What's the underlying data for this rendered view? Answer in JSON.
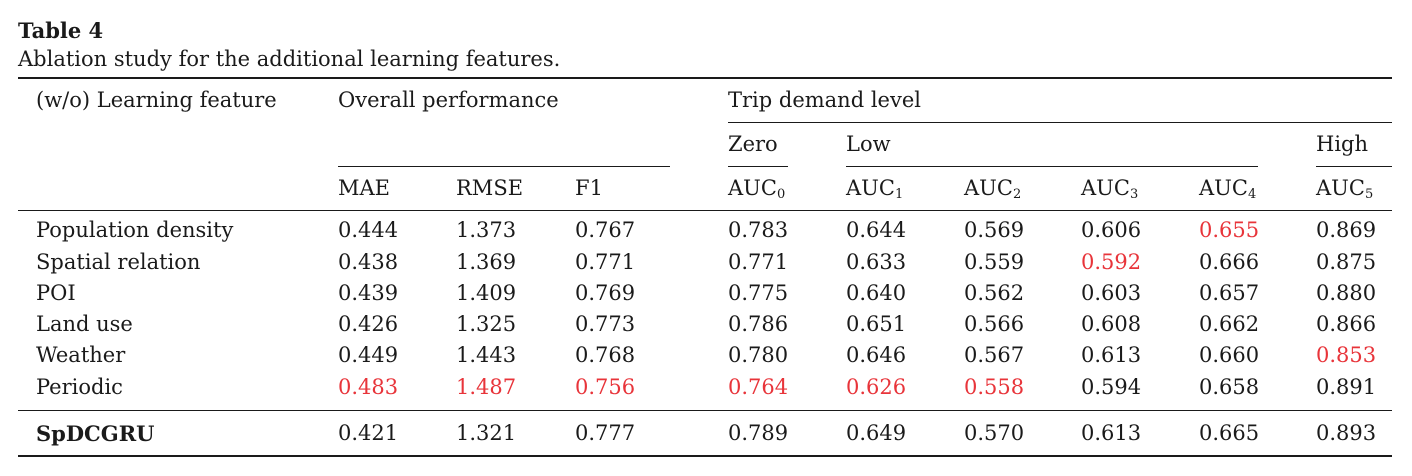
{
  "table": {
    "label": "Table 4",
    "caption": "Ablation study for the additional learning features.",
    "group_headers": {
      "feature": "(w/o) Learning feature",
      "overall": "Overall performance",
      "trip": "Trip demand level"
    },
    "level_headers": {
      "zero": "Zero",
      "low": "Low",
      "high": "High"
    },
    "columns": [
      {
        "base": "MAE",
        "sub": ""
      },
      {
        "base": "RMSE",
        "sub": ""
      },
      {
        "base": "F1",
        "sub": ""
      },
      {
        "base": "AUC",
        "sub": "0"
      },
      {
        "base": "AUC",
        "sub": "1"
      },
      {
        "base": "AUC",
        "sub": "2"
      },
      {
        "base": "AUC",
        "sub": "3"
      },
      {
        "base": "AUC",
        "sub": "4"
      },
      {
        "base": "AUC",
        "sub": "5"
      }
    ],
    "highlight_color": "#e8343a",
    "rows": [
      {
        "feature": "Population density",
        "values": [
          "0.444",
          "1.373",
          "0.767",
          "0.783",
          "0.644",
          "0.569",
          "0.606",
          "0.655",
          "0.869"
        ],
        "highlight": [
          false,
          false,
          false,
          false,
          false,
          false,
          false,
          true,
          false
        ],
        "bold": false
      },
      {
        "feature": "Spatial relation",
        "values": [
          "0.438",
          "1.369",
          "0.771",
          "0.771",
          "0.633",
          "0.559",
          "0.592",
          "0.666",
          "0.875"
        ],
        "highlight": [
          false,
          false,
          false,
          false,
          false,
          false,
          true,
          false,
          false
        ],
        "bold": false
      },
      {
        "feature": "POI",
        "values": [
          "0.439",
          "1.409",
          "0.769",
          "0.775",
          "0.640",
          "0.562",
          "0.603",
          "0.657",
          "0.880"
        ],
        "highlight": [
          false,
          false,
          false,
          false,
          false,
          false,
          false,
          false,
          false
        ],
        "bold": false
      },
      {
        "feature": "Land use",
        "values": [
          "0.426",
          "1.325",
          "0.773",
          "0.786",
          "0.651",
          "0.566",
          "0.608",
          "0.662",
          "0.866"
        ],
        "highlight": [
          false,
          false,
          false,
          false,
          false,
          false,
          false,
          false,
          false
        ],
        "bold": false
      },
      {
        "feature": "Weather",
        "values": [
          "0.449",
          "1.443",
          "0.768",
          "0.780",
          "0.646",
          "0.567",
          "0.613",
          "0.660",
          "0.853"
        ],
        "highlight": [
          false,
          false,
          false,
          false,
          false,
          false,
          false,
          false,
          true
        ],
        "bold": false
      },
      {
        "feature": "Periodic",
        "values": [
          "0.483",
          "1.487",
          "0.756",
          "0.764",
          "0.626",
          "0.558",
          "0.594",
          "0.658",
          "0.891"
        ],
        "highlight": [
          true,
          true,
          true,
          true,
          true,
          true,
          false,
          false,
          false
        ],
        "bold": false
      },
      {
        "feature": "SpDCGRU",
        "values": [
          "0.421",
          "1.321",
          "0.777",
          "0.789",
          "0.649",
          "0.570",
          "0.613",
          "0.665",
          "0.893"
        ],
        "highlight": [
          false,
          false,
          false,
          false,
          false,
          false,
          false,
          false,
          false
        ],
        "bold": true
      }
    ]
  }
}
